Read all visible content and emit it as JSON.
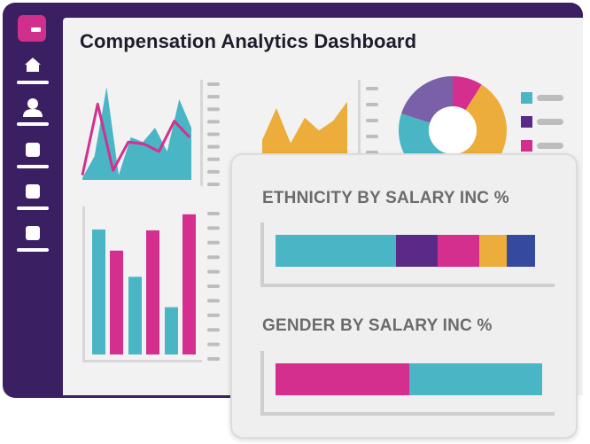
{
  "header": {
    "title": "Compensation Analytics Dashboard"
  },
  "sidebar": {
    "logo_icon": "app-logo-icon",
    "items": [
      {
        "icon": "home-icon"
      },
      {
        "icon": "user-icon"
      },
      {
        "icon": "square-icon"
      },
      {
        "icon": "square-icon"
      },
      {
        "icon": "square-icon"
      }
    ]
  },
  "colors": {
    "teal": "#49b5c5",
    "purple": "#5b2a86",
    "magenta": "#d42f8e",
    "orange": "#ecad3a",
    "navy": "#35499e",
    "lavender": "#7a60a8",
    "sidebar": "#3a1f63"
  },
  "panel": {
    "ethnicity_title": "ETHNICITY BY SALARY INC %",
    "ethnicity_segments": [
      {
        "color": "#49b5c5",
        "pct": 0.465
      },
      {
        "color": "#5b2a86",
        "pct": 0.16
      },
      {
        "color": "#d42f8e",
        "pct": 0.16
      },
      {
        "color": "#ecad3a",
        "pct": 0.105
      },
      {
        "color": "#35499e",
        "pct": 0.11
      }
    ],
    "gender_title": "GENDER BY SALARY INC %",
    "gender_segments": [
      {
        "color": "#d42f8e",
        "pct": 0.5
      },
      {
        "color": "#49b5c5",
        "pct": 0.5
      }
    ]
  },
  "chart_data": [
    {
      "type": "area",
      "series": [
        {
          "color": "#49b5c5",
          "values": [
            0.02,
            0.25,
            0.98,
            0.05,
            0.45,
            0.4,
            0.55,
            0.3,
            0.85,
            0.55
          ]
        },
        {
          "color": "#d42f8e",
          "values": [
            0.05,
            0.8,
            0.1,
            0.4,
            0.38,
            0.3,
            0.62,
            0.45
          ]
        }
      ]
    },
    {
      "type": "area",
      "series": [
        {
          "color": "#ecad3a",
          "values": [
            0.25,
            0.75,
            0.2,
            0.6,
            0.4,
            0.55,
            0.85
          ]
        }
      ]
    },
    {
      "type": "pie",
      "slices": [
        {
          "color": "#d42f8e",
          "value": 9
        },
        {
          "color": "#ecad3a",
          "value": 38
        },
        {
          "color": "#49b5c5",
          "value": 33
        },
        {
          "color": "#7a60a8",
          "value": 20
        }
      ],
      "legend": [
        {
          "color": "#49b5c5"
        },
        {
          "color": "#5b2a86"
        },
        {
          "color": "#d42f8e"
        }
      ]
    },
    {
      "type": "bar",
      "values": [
        148,
        123,
        92,
        147,
        56,
        166
      ],
      "colors": [
        "#49b5c5",
        "#d42f8e",
        "#49b5c5",
        "#d42f8e",
        "#49b5c5",
        "#d42f8e"
      ],
      "ylim": [
        0,
        170
      ]
    }
  ]
}
